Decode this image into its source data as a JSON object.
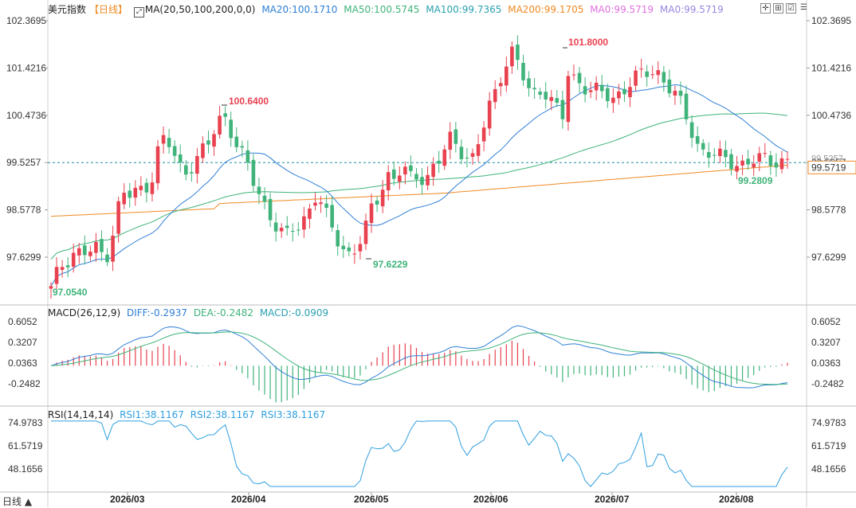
{
  "header": {
    "instrument": "美元指数",
    "period": "【日线】",
    "ma_label": "MA(20,50,100,200,0,0)",
    "ma20": "MA20:100.1710",
    "ma50": "MA50:100.5745",
    "ma100": "MA100:99.7365",
    "ma200": "MA200:99.1705",
    "ma0a": "MA0:99.5719",
    "ma0b": "MA0:99.5719"
  },
  "toolbar_icons": [
    "crosshair-icon",
    "grid-expand-icon",
    "checkbox-icon",
    "menu-icon"
  ],
  "macd": {
    "label": "MACD(26,12,9)",
    "diff": "DIFF:-0.2937",
    "dea": "DEA:-0.2482",
    "macd": "MACD:-0.0909"
  },
  "rsi": {
    "label": "RSI(14,14,14)",
    "rsi1": "RSI1:38.1167",
    "rsi2": "RSI2:38.1167",
    "rsi3": "RSI3:38.1167"
  },
  "bottom_label": "日线 ▲",
  "colors": {
    "up": "#e8414f",
    "down": "#3fb37a",
    "ma20": "#2f7fd6",
    "ma50": "#3fb37a",
    "ma100": "#5a9a70",
    "ma200": "#f08a24",
    "dotted": "#1a8fa0"
  },
  "chart_data": [
    {
      "type": "candlestick",
      "y_ticks": [
        "102.3695",
        "101.4216",
        "100.4736",
        "99.5257",
        "98.5778",
        "97.6299"
      ],
      "ylim": [
        96.8,
        102.6
      ],
      "x_ticks": [
        "2026/03",
        "2026/04",
        "2026/05",
        "2026/06",
        "2026/07",
        "2026/08"
      ],
      "annotations": [
        "101.8000",
        "100.6400",
        "97.6229",
        "97.0540",
        "99.2809"
      ],
      "price_label": "99.5719",
      "right_label_hidden": "99.5257"
    },
    {
      "type": "line",
      "name": "MACD",
      "y_ticks": [
        "0.6052",
        "0.3207",
        "0.0363",
        "-0.2482"
      ],
      "ylim": [
        -0.55,
        0.75
      ]
    },
    {
      "type": "line",
      "name": "RSI",
      "y_ticks": [
        "74.9783",
        "61.5719",
        "48.1656"
      ],
      "ylim": [
        35,
        80
      ]
    }
  ]
}
